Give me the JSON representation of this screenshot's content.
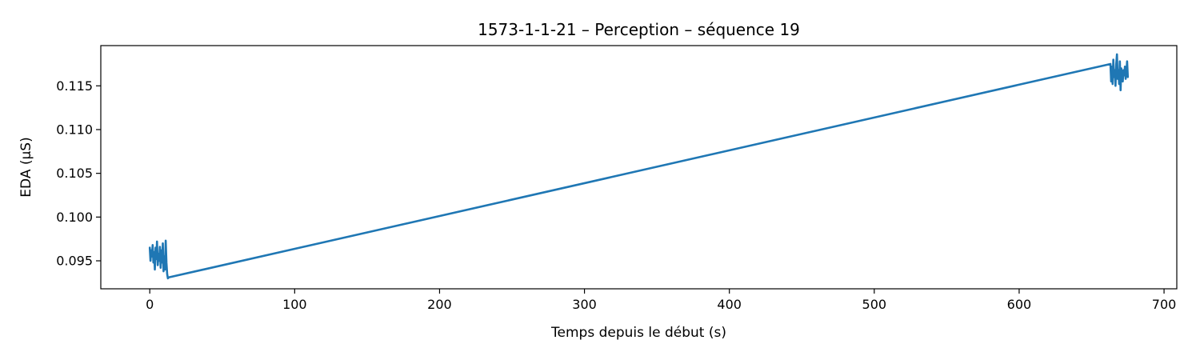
{
  "chart_data": {
    "type": "line",
    "title": "1573-1-1-21 – Perception – séquence 19",
    "xlabel": "Temps depuis le début (s)",
    "ylabel": "EDA (µS)",
    "xlim": [
      -33.8,
      708.8
    ],
    "ylim": [
      0.0918,
      0.1196
    ],
    "xticks": [
      0,
      100,
      200,
      300,
      400,
      500,
      600,
      700
    ],
    "xtick_labels": [
      "0",
      "100",
      "200",
      "300",
      "400",
      "500",
      "600",
      "700"
    ],
    "yticks": [
      0.095,
      0.1,
      0.105,
      0.11,
      0.115
    ],
    "ytick_labels": [
      "0.095",
      "0.100",
      "0.105",
      "0.110",
      "0.115"
    ],
    "grid": false,
    "series": [
      {
        "color": "#1f77b4",
        "x": [
          0.0,
          0.5,
          1.0,
          1.5,
          2.0,
          2.5,
          3.0,
          3.5,
          4.0,
          4.5,
          5.0,
          5.5,
          6.0,
          6.5,
          7.0,
          7.5,
          8.0,
          8.5,
          9.0,
          9.5,
          10.0,
          10.5,
          11.0,
          11.5,
          12.0,
          12.5,
          13.0,
          663.0,
          663.5,
          664.0,
          664.5,
          665.0,
          665.5,
          666.0,
          666.5,
          667.0,
          667.5,
          668.0,
          668.5,
          669.0,
          669.5,
          670.0,
          670.5,
          671.0,
          671.5,
          672.0,
          672.5,
          673.0,
          673.5,
          674.0,
          674.5,
          675.0
        ],
        "y": [
          0.0965,
          0.095,
          0.0962,
          0.0955,
          0.0968,
          0.0948,
          0.096,
          0.094,
          0.0965,
          0.0952,
          0.0972,
          0.0945,
          0.0958,
          0.095,
          0.0966,
          0.0942,
          0.0962,
          0.0948,
          0.097,
          0.0938,
          0.0955,
          0.094,
          0.0973,
          0.0948,
          0.0935,
          0.093,
          0.0931,
          0.1175,
          0.1155,
          0.1172,
          0.1152,
          0.118,
          0.116,
          0.1168,
          0.115,
          0.1175,
          0.1186,
          0.1158,
          0.1168,
          0.1152,
          0.1178,
          0.1145,
          0.117,
          0.116,
          0.1155,
          0.1168,
          0.1162,
          0.1172,
          0.1158,
          0.1165,
          0.1178,
          0.116
        ]
      }
    ]
  }
}
